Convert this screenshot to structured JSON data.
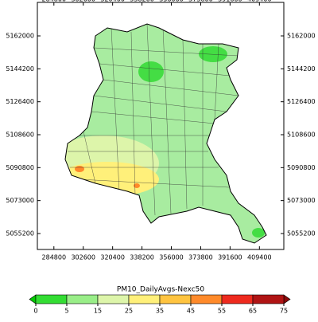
{
  "map": {
    "xlim": [
      274780,
      424190
    ],
    "ylim": [
      5046580,
      5180100
    ],
    "xticks": [
      284800,
      302600,
      320400,
      338200,
      356000,
      373800,
      391600,
      409400
    ],
    "yticks": [
      5162000,
      5144200,
      5126400,
      5108600,
      5090800,
      5073000,
      5055200
    ]
  },
  "colorbar": {
    "title": "PM10_DailyAvgs-Nexc50",
    "levels": [
      0,
      5,
      15,
      25,
      35,
      45,
      55,
      65,
      75
    ],
    "colors": [
      "#33dd33",
      "#99ee88",
      "#ddf5aa",
      "#fff07a",
      "#ffc440",
      "#ff8a2a",
      "#ee2a1e",
      "#b01414"
    ],
    "under_color": "#00cc00",
    "over_color": "#8a0a0a"
  }
}
